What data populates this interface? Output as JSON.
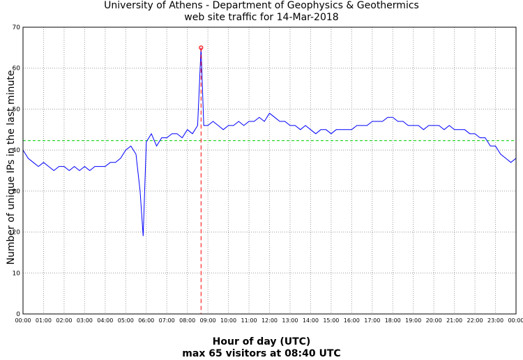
{
  "chart_data": {
    "type": "line",
    "title": "University of Athens - Department of Geophysics & Geothermics",
    "subtitle": "web site traffic for 14-Mar-2018",
    "xlabel": "Hour of day (UTC)",
    "ylabel": "Number of unique IPs in the last minute",
    "footer": "max 65 visitors at 08:40 UTC",
    "ylim": [
      0,
      70
    ],
    "yticks": [
      0,
      10,
      20,
      30,
      40,
      50,
      60,
      70
    ],
    "xlim": [
      0,
      24
    ],
    "xtick_labels": [
      "00:00",
      "01:00",
      "02:00",
      "03:00",
      "04:00",
      "05:00",
      "06:00",
      "07:00",
      "08:00",
      "09:00",
      "10:00",
      "11:00",
      "12:00",
      "13:00",
      "14:00",
      "15:00",
      "16:00",
      "17:00",
      "18:00",
      "19:00",
      "20:00",
      "21:00",
      "22:00",
      "23:00",
      "00:00"
    ],
    "grid": true,
    "mean_line": {
      "value": 42.3,
      "color": "#00cc00"
    },
    "max_marker": {
      "x": 8.667,
      "y": 65,
      "color": "#ff0000"
    },
    "series": [
      {
        "color": "#0000ff",
        "x": [
          0,
          0.25,
          0.5,
          0.75,
          1,
          1.25,
          1.5,
          1.75,
          2,
          2.25,
          2.5,
          2.75,
          3,
          3.25,
          3.5,
          3.75,
          4,
          4.25,
          4.5,
          4.75,
          5,
          5.25,
          5.5,
          5.7,
          5.85,
          6,
          6.25,
          6.5,
          6.75,
          7,
          7.25,
          7.5,
          7.75,
          8,
          8.25,
          8.5,
          8.667,
          8.8,
          9,
          9.25,
          9.5,
          9.75,
          10,
          10.25,
          10.5,
          10.75,
          11,
          11.25,
          11.5,
          11.75,
          12,
          12.25,
          12.5,
          12.75,
          13,
          13.25,
          13.5,
          13.75,
          14,
          14.25,
          14.5,
          14.75,
          15,
          15.25,
          15.5,
          15.75,
          16,
          16.25,
          16.5,
          16.75,
          17,
          17.25,
          17.5,
          17.75,
          18,
          18.25,
          18.5,
          18.75,
          19,
          19.25,
          19.5,
          19.75,
          20,
          20.25,
          20.5,
          20.75,
          21,
          21.25,
          21.5,
          21.75,
          22,
          22.25,
          22.5,
          22.75,
          23,
          23.25,
          23.5,
          23.75,
          24
        ],
        "y": [
          40,
          38,
          37,
          36,
          37,
          36,
          35,
          36,
          36,
          35,
          36,
          35,
          36,
          35,
          36,
          36,
          36,
          37,
          37,
          38,
          40,
          41,
          39,
          30,
          19,
          42,
          44,
          41,
          43,
          43,
          44,
          44,
          43,
          45,
          44,
          46,
          65,
          46,
          46,
          47,
          46,
          45,
          46,
          46,
          47,
          46,
          47,
          47,
          48,
          47,
          49,
          48,
          47,
          47,
          46,
          46,
          45,
          46,
          45,
          44,
          45,
          45,
          44,
          45,
          45,
          45,
          45,
          46,
          46,
          46,
          47,
          47,
          47,
          48,
          48,
          47,
          47,
          46,
          46,
          46,
          45,
          46,
          46,
          46,
          45,
          46,
          45,
          45,
          45,
          44,
          44,
          43,
          43,
          41,
          41,
          39,
          38,
          37,
          38
        ]
      }
    ]
  }
}
